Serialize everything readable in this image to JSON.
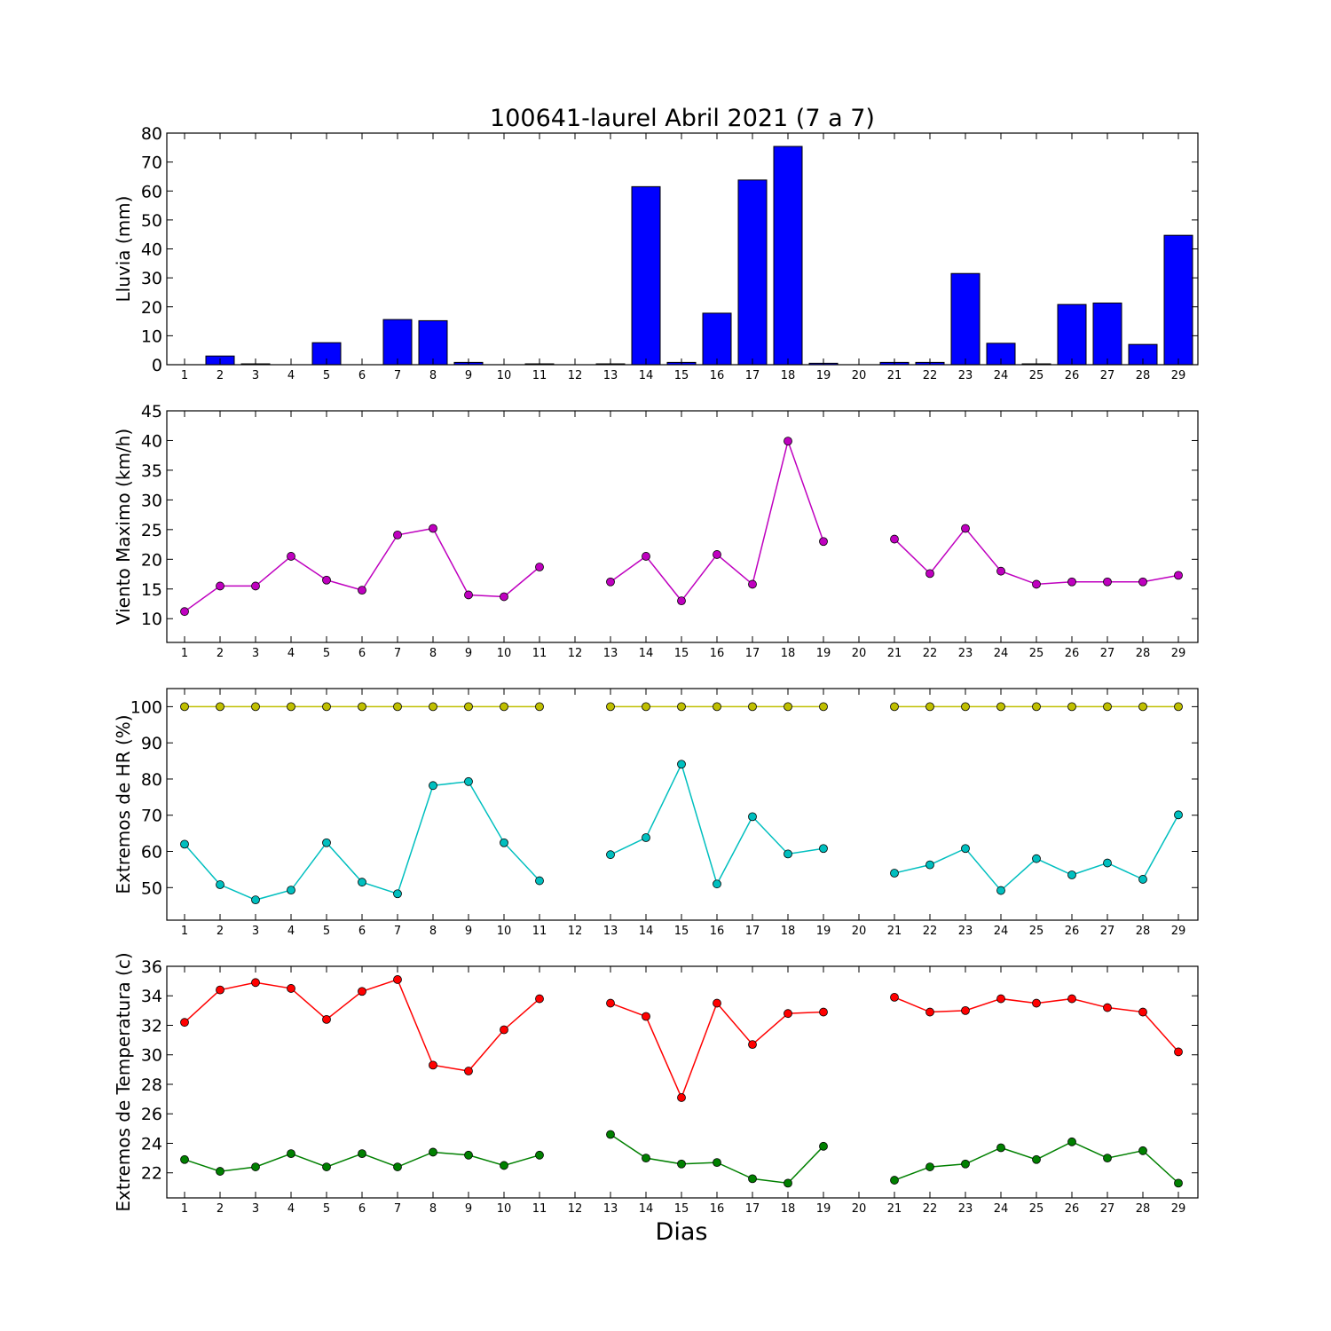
{
  "title": "100641-laurel Abril 2021  (7 a 7)",
  "xlabel": "Dias",
  "chart_data": [
    {
      "type": "bar",
      "ylabel": "Lluvia (mm)",
      "ylim": [
        0,
        80
      ],
      "yticks": [
        0,
        10,
        20,
        30,
        40,
        50,
        60,
        70,
        80
      ],
      "categories": [
        1,
        2,
        3,
        4,
        5,
        6,
        7,
        8,
        9,
        10,
        11,
        12,
        13,
        14,
        15,
        16,
        17,
        18,
        19,
        20,
        21,
        22,
        23,
        24,
        25,
        26,
        27,
        28,
        29
      ],
      "series": [
        {
          "color": "#0000ff",
          "values": [
            0,
            3.0,
            0.3,
            0,
            7.6,
            0,
            15.6,
            15.2,
            0.8,
            0,
            0.3,
            0,
            0.3,
            61.5,
            0.8,
            17.8,
            63.8,
            75.4,
            0.5,
            0,
            0.8,
            0.8,
            31.5,
            7.4,
            0.3,
            20.8,
            21.3,
            7.0,
            44.7
          ]
        }
      ]
    },
    {
      "type": "line",
      "ylabel": "Viento Maximo (km/h)",
      "ylim": [
        6,
        45
      ],
      "yticks": [
        10,
        15,
        20,
        25,
        30,
        35,
        40,
        45
      ],
      "categories": [
        1,
        2,
        3,
        4,
        5,
        6,
        7,
        8,
        9,
        10,
        11,
        12,
        13,
        14,
        15,
        16,
        17,
        18,
        19,
        20,
        21,
        22,
        23,
        24,
        25,
        26,
        27,
        28,
        29
      ],
      "series": [
        {
          "color": "#bf00bf",
          "values": [
            11.2,
            15.5,
            15.5,
            20.5,
            16.5,
            14.8,
            24.1,
            25.2,
            14.0,
            13.7,
            18.7,
            null,
            16.2,
            20.5,
            13.0,
            20.8,
            15.8,
            39.9,
            23.0,
            null,
            23.4,
            17.6,
            25.2,
            18.0,
            15.8,
            16.2,
            16.2,
            16.2,
            17.3
          ]
        }
      ]
    },
    {
      "type": "line",
      "ylabel": "Extremos de HR (%)",
      "ylim": [
        41,
        105
      ],
      "yticks": [
        50,
        60,
        70,
        80,
        90,
        100
      ],
      "categories": [
        1,
        2,
        3,
        4,
        5,
        6,
        7,
        8,
        9,
        10,
        11,
        12,
        13,
        14,
        15,
        16,
        17,
        18,
        19,
        20,
        21,
        22,
        23,
        24,
        25,
        26,
        27,
        28,
        29
      ],
      "series": [
        {
          "color": "#bfbf00",
          "values": [
            100,
            100,
            100,
            100,
            100,
            100,
            100,
            100,
            100,
            100,
            100,
            null,
            100,
            100,
            100,
            100,
            100,
            100,
            100,
            null,
            100,
            100,
            100,
            100,
            100,
            100,
            100,
            100,
            100
          ]
        },
        {
          "color": "#00bfbf",
          "values": [
            62.0,
            50.8,
            46.6,
            49.3,
            62.4,
            51.5,
            48.3,
            78.2,
            79.3,
            62.4,
            51.9,
            null,
            59.1,
            63.8,
            84.1,
            51.0,
            69.6,
            59.3,
            60.8,
            null,
            54.0,
            56.3,
            60.8,
            49.2,
            58.0,
            53.5,
            56.8,
            52.3,
            70.1
          ]
        }
      ]
    },
    {
      "type": "line",
      "ylabel": "Extremos de Temperatura (c)",
      "ylim": [
        20.3,
        36
      ],
      "yticks": [
        22,
        24,
        26,
        28,
        30,
        32,
        34,
        36
      ],
      "categories": [
        1,
        2,
        3,
        4,
        5,
        6,
        7,
        8,
        9,
        10,
        11,
        12,
        13,
        14,
        15,
        16,
        17,
        18,
        19,
        20,
        21,
        22,
        23,
        24,
        25,
        26,
        27,
        28,
        29
      ],
      "series": [
        {
          "color": "#ff0000",
          "values": [
            32.2,
            34.4,
            34.9,
            34.5,
            32.4,
            34.3,
            35.1,
            29.3,
            28.9,
            31.7,
            33.8,
            null,
            33.5,
            32.6,
            27.1,
            33.5,
            30.7,
            32.8,
            32.9,
            null,
            33.9,
            32.9,
            33.0,
            33.8,
            33.5,
            33.8,
            33.2,
            32.9,
            30.2
          ]
        },
        {
          "color": "#008000",
          "values": [
            22.9,
            22.1,
            22.4,
            23.3,
            22.4,
            23.3,
            22.4,
            23.4,
            23.2,
            22.5,
            23.2,
            null,
            24.6,
            23.0,
            22.6,
            22.7,
            21.6,
            21.3,
            23.8,
            null,
            21.5,
            22.4,
            22.6,
            23.7,
            22.9,
            24.1,
            23.0,
            23.5,
            21.3
          ]
        }
      ]
    }
  ]
}
